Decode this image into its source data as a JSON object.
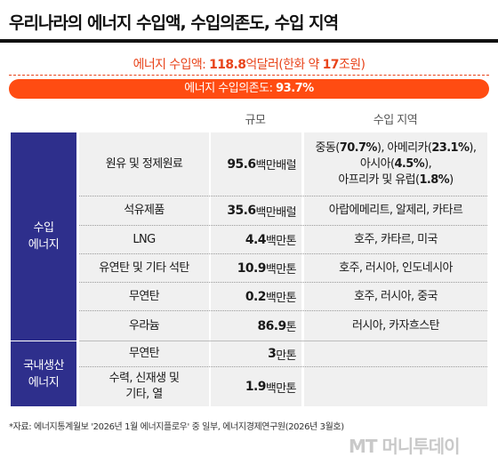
{
  "title": "우리나라의 에너지 수입액, 수입의존도, 수입 지역",
  "import_amount": {
    "label": "에너지 수입액: ",
    "value": "118.8",
    "unit": "억달러(한화 약 ",
    "krw": "17",
    "krw_unit": "조원)"
  },
  "dependence": {
    "label": "에너지 수입의존도: ",
    "value": "93.7%"
  },
  "headers": {
    "scale": "규모",
    "region": "수입 지역"
  },
  "categories": {
    "imported": [
      "수입",
      "에너지"
    ],
    "domestic": [
      "국내생산",
      "에너지"
    ]
  },
  "rows": [
    {
      "name": "원유 및 정제원료",
      "num": "95.6",
      "unit": "백만배럴",
      "region": [
        "중동(",
        "70.7%",
        "), 아메리카(",
        "23.1%",
        "),",
        "아시아(",
        "4.5%",
        "),",
        "아프리카 및 유럽(",
        "1.8%",
        ")"
      ]
    },
    {
      "name": "석유제품",
      "num": "35.6",
      "unit": "백만배럴",
      "region_text": "아랍에메리트, 알제리, 카타르"
    },
    {
      "name": "LNG",
      "num": "4.4",
      "unit": "백만톤",
      "region_text": "호주, 카타르, 미국"
    },
    {
      "name": "유연탄 및 기타 석탄",
      "num": "10.9",
      "unit": "백만톤",
      "region_text": "호주, 러시아, 인도네시아"
    },
    {
      "name": "무연탄",
      "num": "0.2",
      "unit": "백만톤",
      "region_text": "호주, 러시아, 중국"
    },
    {
      "name": "우라늄",
      "num": "86.9",
      "unit": "톤",
      "region_text": "러시아, 카자흐스탄"
    },
    {
      "name": "무연탄",
      "num": "3",
      "unit": "만톤",
      "region_text": ""
    },
    {
      "name_lines": [
        "수력, 신재생 및",
        "기타, 열"
      ],
      "num": "1.9",
      "unit": "백만톤",
      "region_text": ""
    }
  ],
  "source": "*자료: 에너지통계월보 '2026년 1월 에너지플로우' 중 일부, 에너지경제연구원(2026년 3월호)",
  "logo": "MT 머니투데이"
}
